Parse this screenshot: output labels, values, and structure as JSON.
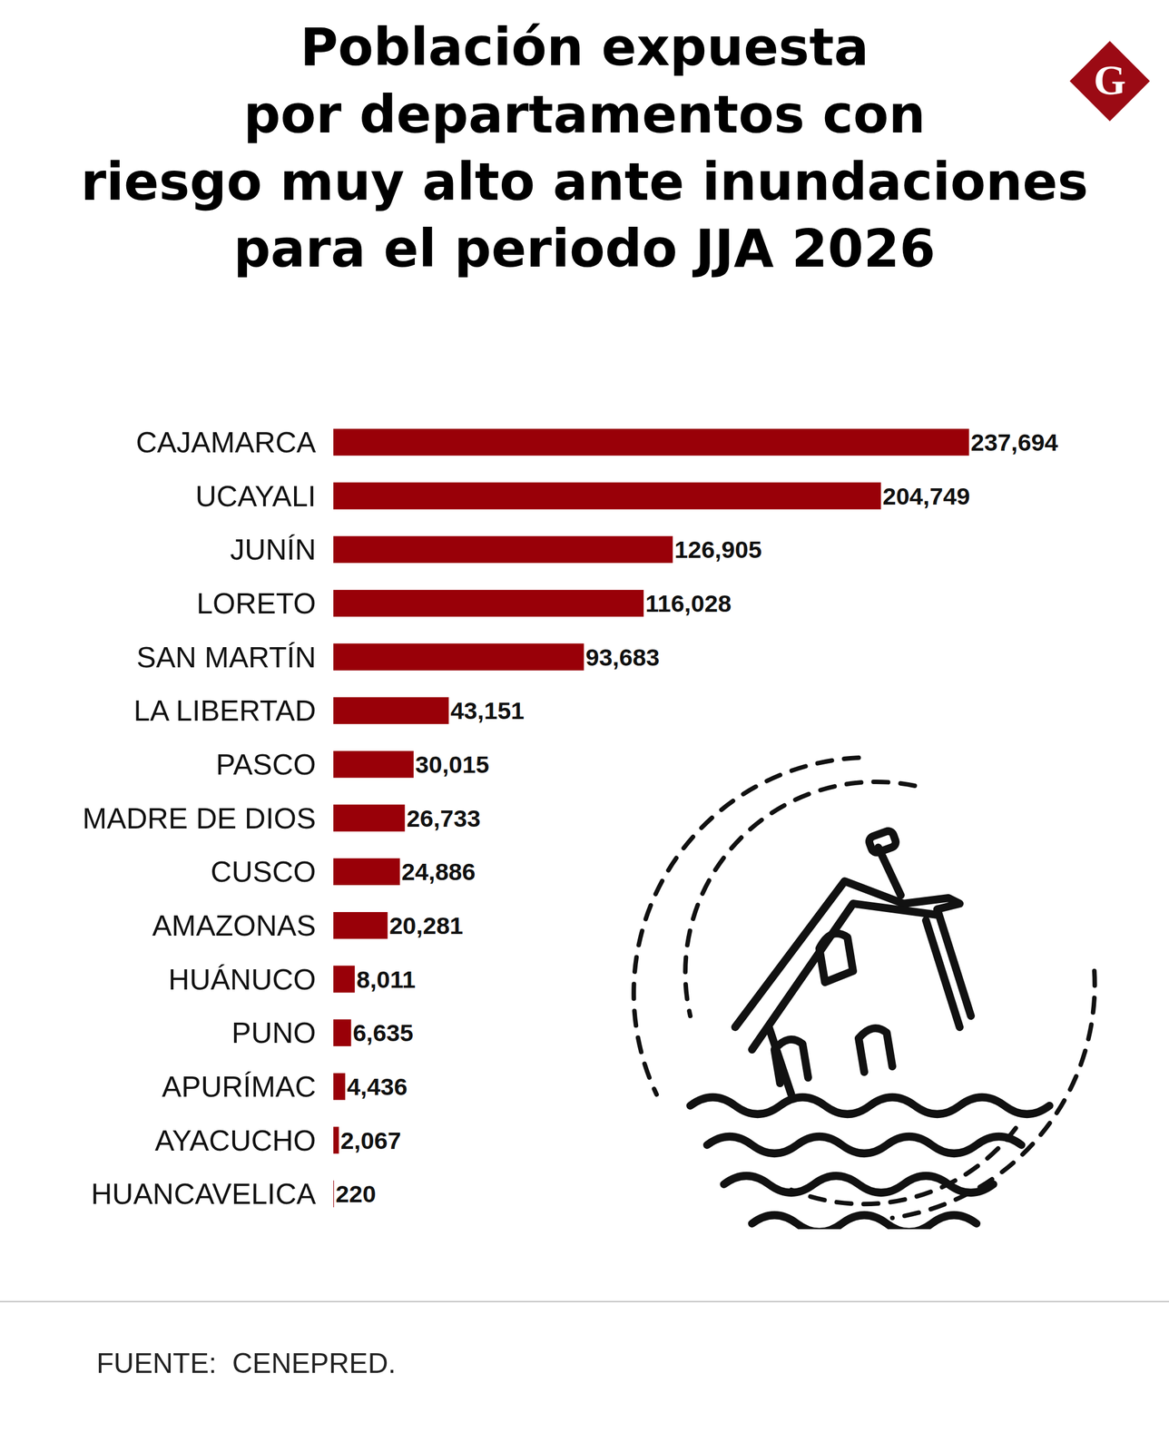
{
  "chart_data": {
    "type": "bar",
    "orientation": "horizontal",
    "title": [
      "Población expuesta",
      "por departamentos con",
      "riesgo muy alto ante inundaciones",
      "para el periodo JJA 2026"
    ],
    "categories": [
      "CAJAMARCA",
      "UCAYALI",
      "JUNÍN",
      "LORETO",
      "SAN MARTÍN",
      "LA LIBERTAD",
      "PASCO",
      "MADRE DE DIOS",
      "CUSCO",
      "AMAZONAS",
      "HUÁNUCO",
      "PUNO",
      "APURÍMAC",
      "AYACUCHO",
      "HUANCAVELICA"
    ],
    "values": [
      237694,
      204749,
      126905,
      116028,
      93683,
      43151,
      30015,
      26733,
      24886,
      20281,
      8011,
      6635,
      4436,
      2067,
      220
    ],
    "value_labels": [
      "237,694",
      "204,749",
      "126,905",
      "116,028",
      "93,683",
      "43,151",
      "30,015",
      "26,733",
      "24,886",
      "20,281",
      "8,011",
      "6,635",
      "4,436",
      "2,067",
      "220"
    ],
    "color": "#990008",
    "xlim": [
      0,
      260000
    ],
    "data_labels": true,
    "tick_labels": "y",
    "grid": false,
    "annotations": [
      "FUENTE:  CENEPRED.",
      "G"
    ]
  }
}
